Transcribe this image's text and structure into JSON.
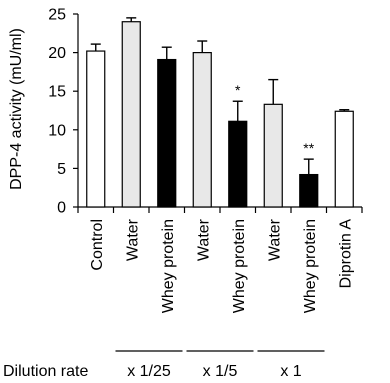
{
  "chart_data": {
    "type": "bar",
    "ylabel": "DPP-4 activity (mU/ml)",
    "ylim": [
      0,
      25
    ],
    "yticks": [
      0,
      5,
      10,
      15,
      20,
      25
    ],
    "categories": [
      "Control",
      "Water",
      "Whey protein",
      "Water",
      "Whey protein",
      "Water",
      "Whey protein",
      "Diprotin A"
    ],
    "values": [
      20.2,
      24.0,
      19.1,
      20.0,
      11.1,
      13.3,
      4.2,
      12.4
    ],
    "errors": [
      0.9,
      0.5,
      1.6,
      1.5,
      2.6,
      3.2,
      2.0,
      0.2
    ],
    "fills": [
      "#ffffff",
      "#e8e8e8",
      "#000000",
      "#e8e8e8",
      "#000000",
      "#e8e8e8",
      "#000000",
      "#ffffff"
    ],
    "significance": [
      "",
      "",
      "",
      "",
      "*",
      "",
      "**",
      ""
    ],
    "dilution": {
      "label": "Dilution rate",
      "groups": [
        {
          "label": "x 1/25",
          "bars": [
            1,
            2
          ]
        },
        {
          "label": "x 1/5",
          "bars": [
            3,
            4
          ]
        },
        {
          "label": "x 1",
          "bars": [
            5,
            6
          ]
        }
      ]
    },
    "grid": false,
    "legend": "none"
  }
}
